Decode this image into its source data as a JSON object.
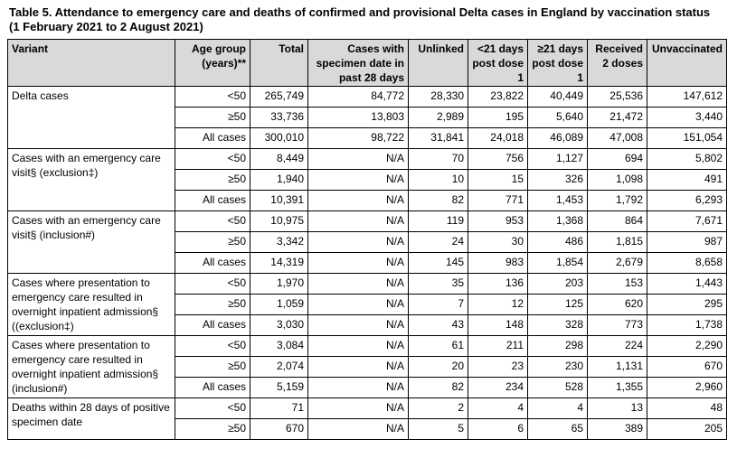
{
  "title_line1": "Table 5. Attendance to emergency care and deaths of confirmed and provisional Delta cases in England by vaccination status",
  "title_line2": "(1 February 2021 to 2 August 2021)",
  "headers": {
    "variant": "Variant",
    "age_group": "Age group (years)**",
    "total": "Total",
    "cases_specimen": "Cases with specimen date in past 28 days",
    "unlinked": "Unlinked",
    "lt21": "<21 days post dose 1",
    "ge21": "≥21 days post dose 1",
    "received2": "Received 2 doses",
    "unvaccinated": "Unvaccinated"
  },
  "groups": [
    {
      "variant": "Delta cases",
      "rows": [
        {
          "age": "<50",
          "total": "265,749",
          "cases": "84,772",
          "unlinked": "28,330",
          "lt21": "23,822",
          "ge21": "40,449",
          "received2": "25,536",
          "unvaccinated": "147,612"
        },
        {
          "age": "≥50",
          "total": "33,736",
          "cases": "13,803",
          "unlinked": "2,989",
          "lt21": "195",
          "ge21": "5,640",
          "received2": "21,472",
          "unvaccinated": "3,440"
        },
        {
          "age": "All cases",
          "total": "300,010",
          "cases": "98,722",
          "unlinked": "31,841",
          "lt21": "24,018",
          "ge21": "46,089",
          "received2": "47,008",
          "unvaccinated": "151,054"
        }
      ]
    },
    {
      "variant": "Cases with an emergency care visit§ (exclusion‡)",
      "rows": [
        {
          "age": "<50",
          "total": "8,449",
          "cases": "N/A",
          "unlinked": "70",
          "lt21": "756",
          "ge21": "1,127",
          "received2": "694",
          "unvaccinated": "5,802"
        },
        {
          "age": "≥50",
          "total": "1,940",
          "cases": "N/A",
          "unlinked": "10",
          "lt21": "15",
          "ge21": "326",
          "received2": "1,098",
          "unvaccinated": "491"
        },
        {
          "age": "All cases",
          "total": "10,391",
          "cases": "N/A",
          "unlinked": "82",
          "lt21": "771",
          "ge21": "1,453",
          "received2": "1,792",
          "unvaccinated": "6,293"
        }
      ]
    },
    {
      "variant": "Cases with an emergency care visit§ (inclusion#)",
      "rows": [
        {
          "age": "<50",
          "total": "10,975",
          "cases": "N/A",
          "unlinked": "119",
          "lt21": "953",
          "ge21": "1,368",
          "received2": "864",
          "unvaccinated": "7,671"
        },
        {
          "age": "≥50",
          "total": "3,342",
          "cases": "N/A",
          "unlinked": "24",
          "lt21": "30",
          "ge21": "486",
          "received2": "1,815",
          "unvaccinated": "987"
        },
        {
          "age": "All cases",
          "total": "14,319",
          "cases": "N/A",
          "unlinked": "145",
          "lt21": "983",
          "ge21": "1,854",
          "received2": "2,679",
          "unvaccinated": "8,658"
        }
      ]
    },
    {
      "variant": "Cases where presentation to emergency care resulted in overnight inpatient admission§ ((exclusion‡)",
      "rows": [
        {
          "age": "<50",
          "total": "1,970",
          "cases": "N/A",
          "unlinked": "35",
          "lt21": "136",
          "ge21": "203",
          "received2": "153",
          "unvaccinated": "1,443"
        },
        {
          "age": "≥50",
          "total": "1,059",
          "cases": "N/A",
          "unlinked": "7",
          "lt21": "12",
          "ge21": "125",
          "received2": "620",
          "unvaccinated": "295"
        },
        {
          "age": "All cases",
          "total": "3,030",
          "cases": "N/A",
          "unlinked": "43",
          "lt21": "148",
          "ge21": "328",
          "received2": "773",
          "unvaccinated": "1,738"
        }
      ]
    },
    {
      "variant": "Cases where presentation to emergency care resulted in overnight inpatient admission§ (inclusion#)",
      "rows": [
        {
          "age": "<50",
          "total": "3,084",
          "cases": "N/A",
          "unlinked": "61",
          "lt21": "211",
          "ge21": "298",
          "received2": "224",
          "unvaccinated": "2,290"
        },
        {
          "age": "≥50",
          "total": "2,074",
          "cases": "N/A",
          "unlinked": "20",
          "lt21": "23",
          "ge21": "230",
          "received2": "1,131",
          "unvaccinated": "670"
        },
        {
          "age": "All cases",
          "total": "5,159",
          "cases": "N/A",
          "unlinked": "82",
          "lt21": "234",
          "ge21": "528",
          "received2": "1,355",
          "unvaccinated": "2,960"
        }
      ]
    },
    {
      "variant": "Deaths within 28 days of positive specimen date",
      "rows": [
        {
          "age": "<50",
          "total": "71",
          "cases": "N/A",
          "unlinked": "2",
          "lt21": "4",
          "ge21": "4",
          "received2": "13",
          "unvaccinated": "48"
        },
        {
          "age": "≥50",
          "total": "670",
          "cases": "N/A",
          "unlinked": "5",
          "lt21": "6",
          "ge21": "65",
          "received2": "389",
          "unvaccinated": "205"
        }
      ]
    }
  ]
}
